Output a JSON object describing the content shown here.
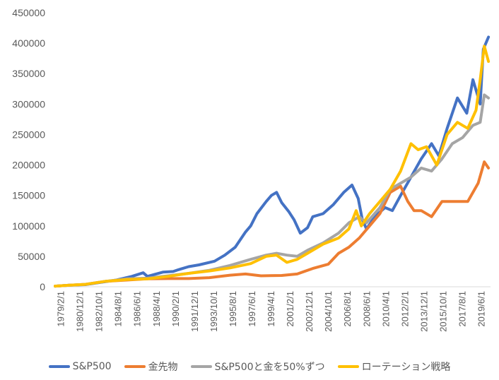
{
  "chart_data": {
    "type": "line",
    "title": "",
    "xlabel": "",
    "ylabel": "",
    "ylim": [
      0,
      450000
    ],
    "y_ticks": [
      0,
      50000,
      100000,
      150000,
      200000,
      250000,
      300000,
      350000,
      400000,
      450000
    ],
    "y_tick_labels": [
      "0",
      "50000",
      "100000",
      "150000",
      "200000",
      "250000",
      "300000",
      "350000",
      "400000",
      "450000"
    ],
    "x_tick_labels": [
      "1979/2/1",
      "1980/12/1",
      "1982/10/1",
      "1984/8/1",
      "1986/6/1",
      "1988/4/1",
      "1990/2/1",
      "1991/12/1",
      "1993/10/1",
      "1995/8/1",
      "1997/6/1",
      "1999/4/1",
      "2001/2/1",
      "2002/12/1",
      "2004/10/1",
      "2006/8/1",
      "2008/6/1",
      "2010/4/1",
      "2012/2/1",
      "2013/12/1",
      "2015/10/1",
      "2017/8/1",
      "2019/6/1"
    ],
    "grid": false,
    "legend_position": "bottom",
    "series": [
      {
        "name": "S&P500",
        "color": "#4472C4",
        "points": [
          [
            1979.08,
            1000
          ],
          [
            1980.5,
            2500
          ],
          [
            1982.0,
            3500
          ],
          [
            1983.0,
            6000
          ],
          [
            1985.0,
            11000
          ],
          [
            1986.5,
            17000
          ],
          [
            1987.6,
            23000
          ],
          [
            1988.0,
            17000
          ],
          [
            1989.5,
            24000
          ],
          [
            1990.5,
            25000
          ],
          [
            1991.0,
            28000
          ],
          [
            1992.0,
            33000
          ],
          [
            1993.0,
            36000
          ],
          [
            1994.5,
            42000
          ],
          [
            1995.5,
            52000
          ],
          [
            1996.5,
            65000
          ],
          [
            1997.5,
            90000
          ],
          [
            1998.0,
            100000
          ],
          [
            1998.6,
            120000
          ],
          [
            1999.5,
            140000
          ],
          [
            2000.0,
            150000
          ],
          [
            2000.5,
            155000
          ],
          [
            2001.0,
            138000
          ],
          [
            2001.7,
            123000
          ],
          [
            2002.2,
            110000
          ],
          [
            2002.8,
            88000
          ],
          [
            2003.5,
            97000
          ],
          [
            2004.0,
            115000
          ],
          [
            2005.0,
            120000
          ],
          [
            2006.0,
            135000
          ],
          [
            2007.0,
            155000
          ],
          [
            2007.8,
            167000
          ],
          [
            2008.4,
            145000
          ],
          [
            2008.8,
            110000
          ],
          [
            2009.2,
            95000
          ],
          [
            2010.0,
            115000
          ],
          [
            2011.0,
            130000
          ],
          [
            2011.7,
            125000
          ],
          [
            2012.5,
            150000
          ],
          [
            2013.5,
            180000
          ],
          [
            2014.5,
            210000
          ],
          [
            2015.5,
            235000
          ],
          [
            2016.2,
            215000
          ],
          [
            2017.0,
            260000
          ],
          [
            2018.0,
            310000
          ],
          [
            2018.9,
            285000
          ],
          [
            2019.5,
            340000
          ],
          [
            2020.2,
            300000
          ],
          [
            2020.5,
            390000
          ],
          [
            2021.0,
            410000
          ]
        ]
      },
      {
        "name": "金先物",
        "color": "#ED7D31",
        "points": [
          [
            1979.08,
            1000
          ],
          [
            1980.5,
            2500
          ],
          [
            1982.0,
            4000
          ],
          [
            1984.0,
            9000
          ],
          [
            1986.0,
            11000
          ],
          [
            1988.0,
            13000
          ],
          [
            1990.0,
            13500
          ],
          [
            1992.0,
            13500
          ],
          [
            1994.0,
            15000
          ],
          [
            1996.0,
            19000
          ],
          [
            1997.5,
            21000
          ],
          [
            1999.0,
            18000
          ],
          [
            2001.0,
            18500
          ],
          [
            2002.5,
            21000
          ],
          [
            2004.0,
            30000
          ],
          [
            2005.5,
            37000
          ],
          [
            2006.5,
            55000
          ],
          [
            2007.5,
            65000
          ],
          [
            2008.5,
            80000
          ],
          [
            2009.5,
            100000
          ],
          [
            2010.5,
            120000
          ],
          [
            2011.5,
            155000
          ],
          [
            2012.5,
            165000
          ],
          [
            2013.2,
            140000
          ],
          [
            2013.8,
            125000
          ],
          [
            2014.5,
            125000
          ],
          [
            2015.5,
            115000
          ],
          [
            2016.5,
            140000
          ],
          [
            2018.0,
            140000
          ],
          [
            2019.0,
            140000
          ],
          [
            2020.0,
            170000
          ],
          [
            2020.6,
            205000
          ],
          [
            2021.0,
            195000
          ]
        ]
      },
      {
        "name": "S&P500と金を50%ずつ",
        "color": "#A5A5A5",
        "points": [
          [
            1979.08,
            1000
          ],
          [
            1980.5,
            2500
          ],
          [
            1982.0,
            4000
          ],
          [
            1984.0,
            9000
          ],
          [
            1986.0,
            13000
          ],
          [
            1988.0,
            14000
          ],
          [
            1990.0,
            18000
          ],
          [
            1992.0,
            22000
          ],
          [
            1994.0,
            27000
          ],
          [
            1996.0,
            35000
          ],
          [
            1998.0,
            45000
          ],
          [
            1999.5,
            52000
          ],
          [
            2000.5,
            55000
          ],
          [
            2001.5,
            52000
          ],
          [
            2002.5,
            50000
          ],
          [
            2003.5,
            60000
          ],
          [
            2005.0,
            72000
          ],
          [
            2006.5,
            88000
          ],
          [
            2007.5,
            105000
          ],
          [
            2008.5,
            115000
          ],
          [
            2009.2,
            105000
          ],
          [
            2010.5,
            130000
          ],
          [
            2011.5,
            160000
          ],
          [
            2012.5,
            170000
          ],
          [
            2013.5,
            180000
          ],
          [
            2014.5,
            195000
          ],
          [
            2015.5,
            190000
          ],
          [
            2016.5,
            210000
          ],
          [
            2017.5,
            235000
          ],
          [
            2018.5,
            245000
          ],
          [
            2019.5,
            265000
          ],
          [
            2020.2,
            270000
          ],
          [
            2020.6,
            315000
          ],
          [
            2021.0,
            310000
          ]
        ]
      },
      {
        "name": "ローテーション戦略",
        "color": "#FFC000",
        "points": [
          [
            1979.08,
            1000
          ],
          [
            1980.5,
            2500
          ],
          [
            1982.0,
            4000
          ],
          [
            1984.0,
            9000
          ],
          [
            1986.0,
            12000
          ],
          [
            1988.0,
            13000
          ],
          [
            1990.0,
            17000
          ],
          [
            1992.0,
            22000
          ],
          [
            1994.0,
            26000
          ],
          [
            1996.0,
            31000
          ],
          [
            1998.0,
            38000
          ],
          [
            1999.5,
            50000
          ],
          [
            2000.5,
            52000
          ],
          [
            2001.5,
            40000
          ],
          [
            2002.5,
            45000
          ],
          [
            2003.5,
            55000
          ],
          [
            2005.0,
            70000
          ],
          [
            2006.5,
            80000
          ],
          [
            2007.5,
            95000
          ],
          [
            2008.2,
            125000
          ],
          [
            2008.7,
            100000
          ],
          [
            2009.5,
            120000
          ],
          [
            2010.5,
            140000
          ],
          [
            2011.5,
            160000
          ],
          [
            2012.5,
            190000
          ],
          [
            2013.5,
            235000
          ],
          [
            2014.2,
            225000
          ],
          [
            2015.0,
            230000
          ],
          [
            2016.0,
            200000
          ],
          [
            2017.0,
            250000
          ],
          [
            2018.0,
            270000
          ],
          [
            2019.0,
            260000
          ],
          [
            2019.8,
            290000
          ],
          [
            2020.2,
            340000
          ],
          [
            2020.6,
            395000
          ],
          [
            2021.0,
            370000
          ]
        ]
      }
    ]
  }
}
